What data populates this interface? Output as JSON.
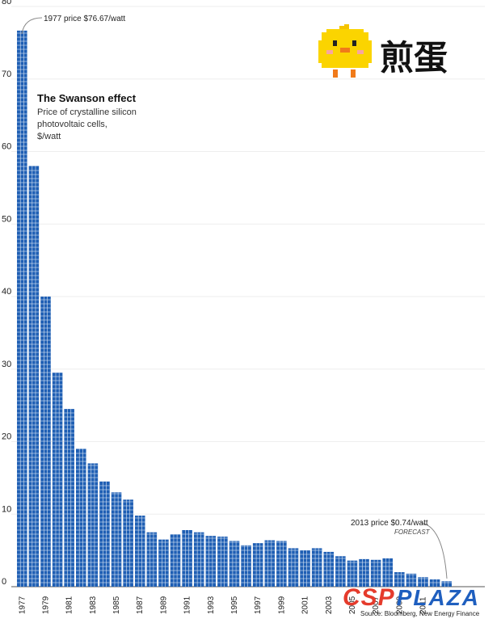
{
  "chart_data": {
    "type": "bar",
    "title": "The Swanson effect",
    "subtitle_lines": [
      "Price of crystalline silicon",
      "photovoltaic cells,",
      "$/watt"
    ],
    "ylim": [
      0,
      80
    ],
    "yticks": [
      0,
      10,
      20,
      30,
      40,
      50,
      60,
      70,
      80
    ],
    "tick_years": [
      "1977",
      "1979",
      "1981",
      "1983",
      "1985",
      "1987",
      "1989",
      "1991",
      "1993",
      "1995",
      "1997",
      "1999",
      "2001",
      "2003",
      "2005",
      "2007",
      "2009",
      "2011"
    ],
    "years": [
      1977,
      1978,
      1979,
      1980,
      1981,
      1982,
      1983,
      1984,
      1985,
      1986,
      1987,
      1988,
      1989,
      1990,
      1991,
      1992,
      1993,
      1994,
      1995,
      1996,
      1997,
      1998,
      1999,
      2000,
      2001,
      2002,
      2003,
      2004,
      2005,
      2006,
      2007,
      2008,
      2009,
      2010,
      2011,
      2012,
      2013
    ],
    "values": [
      76.67,
      58.0,
      40.0,
      29.5,
      24.5,
      19.0,
      17.0,
      14.5,
      13.0,
      12.0,
      9.8,
      7.5,
      6.5,
      7.2,
      7.8,
      7.5,
      7.0,
      6.9,
      6.3,
      5.7,
      6.0,
      6.4,
      6.3,
      5.3,
      5.0,
      5.3,
      4.8,
      4.2,
      3.6,
      3.8,
      3.7,
      3.9,
      2.0,
      1.8,
      1.3,
      1.0,
      0.74
    ],
    "annotation_1977": "1977 price $76.67/watt",
    "annotation_2013": "2013 price $0.74/watt",
    "forecast_label": "FORECAST",
    "source": "Source: Bloomberg, New Energy Finance",
    "bar_color": "#1f5fb4",
    "grid_color": "#dbe6f4"
  },
  "branding": {
    "csp_red": "CSP",
    "csp_blue": "PLAZA",
    "chick_logo_text": "煎蛋"
  }
}
